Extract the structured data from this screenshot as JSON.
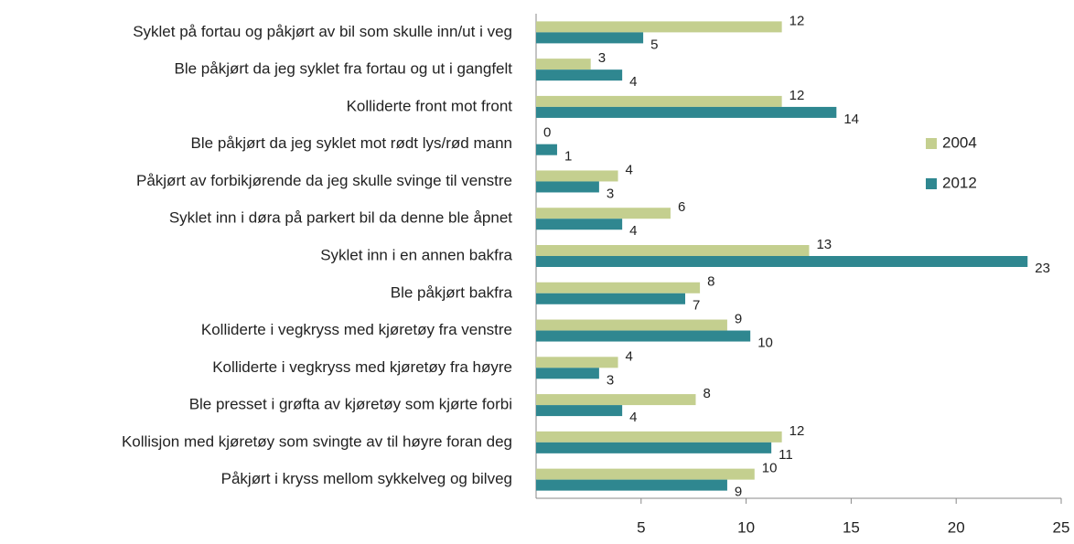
{
  "chart_data": {
    "type": "bar",
    "orientation": "horizontal",
    "categories": [
      "Syklet på fortau og påkjørt av bil som skulle inn/ut i veg",
      "Ble påkjørt da jeg syklet fra fortau og ut i gangfelt",
      "Kolliderte front mot front",
      "Ble påkjørt da jeg syklet mot rødt lys/rød mann",
      "Påkjørt av forbikjørende da jeg skulle svinge til venstre",
      "Syklet inn i døra på parkert bil da denne ble åpnet",
      "Syklet inn i en annen bakfra",
      "Ble påkjørt bakfra",
      "Kolliderte i vegkryss med kjøretøy fra venstre",
      "Kolliderte i vegkryss med kjøretøy fra høyre",
      "Ble presset i grøfta av kjøretøy som kjørte forbi",
      "Kollisjon med kjøretøy som svingte av til høyre foran deg",
      "Påkjørt i kryss mellom sykkelveg og bilveg"
    ],
    "series": [
      {
        "name": "2004",
        "color": "#c4cf8f",
        "values": [
          11.7,
          2.6,
          11.7,
          0,
          3.9,
          6.4,
          13.0,
          7.8,
          9.1,
          3.9,
          7.6,
          11.7,
          10.4
        ],
        "value_labels": [
          "12",
          "3",
          "12",
          "0",
          "4",
          "6",
          "13",
          "8",
          "9",
          "4",
          "8",
          "12",
          "10"
        ]
      },
      {
        "name": "2012",
        "color": "#2f8790",
        "values": [
          5.1,
          4.1,
          14.3,
          1.0,
          3.0,
          4.1,
          23.4,
          7.1,
          10.2,
          3.0,
          4.1,
          11.2,
          9.1
        ],
        "value_labels": [
          "5",
          "4",
          "14",
          "1",
          "3",
          "4",
          "23",
          "7",
          "10",
          "3",
          "4",
          "11",
          "9"
        ]
      }
    ],
    "xlim": [
      0,
      25
    ],
    "xticks": [
      5,
      10,
      15,
      20,
      25
    ],
    "legend": "right"
  }
}
